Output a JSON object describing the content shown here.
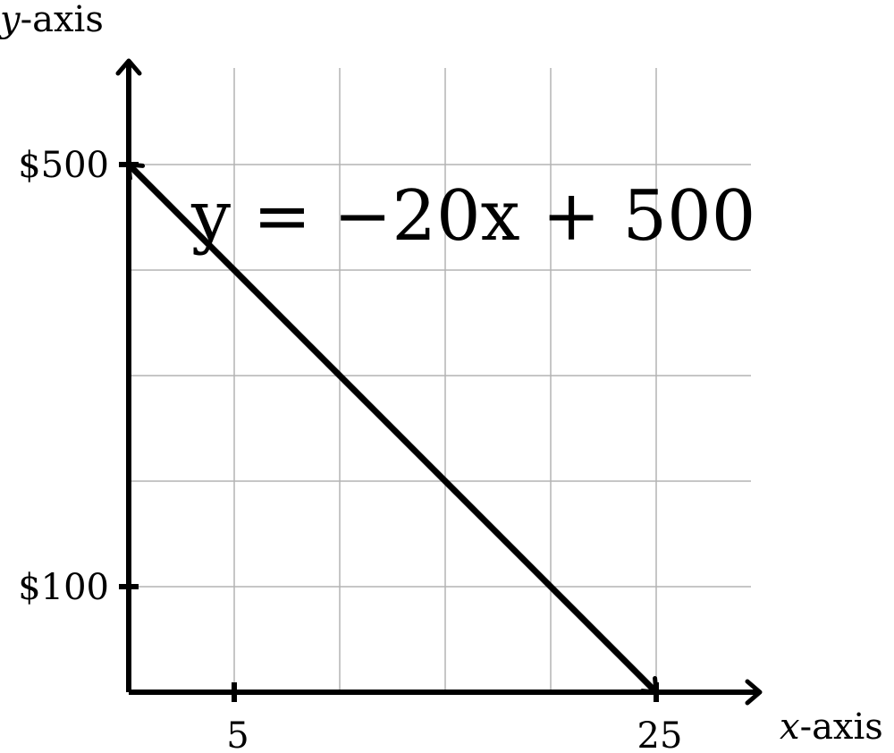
{
  "chart_data": {
    "type": "line",
    "xlabel": {
      "var": "x",
      "suffix": "-axis"
    },
    "ylabel": {
      "var": "y",
      "suffix": "-axis"
    },
    "xlim": [
      0,
      30
    ],
    "ylim": [
      0,
      500
    ],
    "grid": true,
    "x_ticks": [
      {
        "value": 5,
        "label": "5"
      },
      {
        "value": 25,
        "label": "25"
      }
    ],
    "y_ticks": [
      {
        "value": 500,
        "label": "$500"
      },
      {
        "value": 100,
        "label": "$100"
      }
    ],
    "x_gridlines": [
      5,
      10,
      15,
      20,
      25
    ],
    "y_gridlines": [
      100,
      200,
      300,
      400,
      500
    ],
    "series": [
      {
        "x": [
          0,
          25
        ],
        "y": [
          500,
          0
        ],
        "color": "#000000"
      }
    ],
    "annotation": "y = −20x + 500"
  }
}
